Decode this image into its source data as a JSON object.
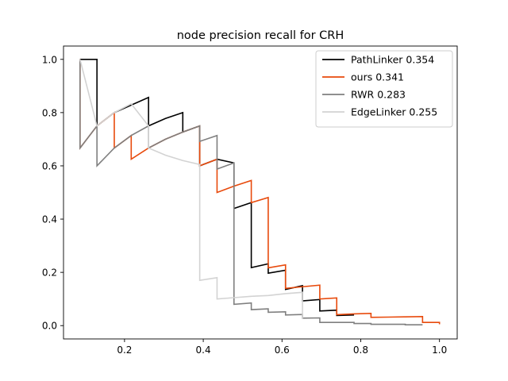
{
  "chart_data": {
    "type": "line",
    "title": "node precision recall for CRH",
    "xlabel": "",
    "ylabel": "",
    "xlim": [
      0.045,
      1.045
    ],
    "ylim": [
      -0.05,
      1.05
    ],
    "xticks": [
      0.2,
      0.4,
      0.6,
      0.8,
      1.0
    ],
    "xtick_labels": [
      "0.2",
      "0.4",
      "0.6",
      "0.8",
      "1.0"
    ],
    "yticks": [
      0.0,
      0.2,
      0.4,
      0.6,
      0.8,
      1.0
    ],
    "ytick_labels": [
      "0.0",
      "0.2",
      "0.4",
      "0.6",
      "0.8",
      "1.0"
    ],
    "grid": false,
    "legend_position": "top-right",
    "series": [
      {
        "name": "PathLinker 0.354",
        "color": "#000000",
        "points": [
          [
            0.087,
            1.0
          ],
          [
            0.13,
            1.0
          ],
          [
            0.13,
            0.75
          ],
          [
            0.174,
            0.8
          ],
          [
            0.261,
            0.857
          ],
          [
            0.261,
            0.75
          ],
          [
            0.304,
            0.778
          ],
          [
            0.348,
            0.8
          ],
          [
            0.348,
            0.727
          ],
          [
            0.391,
            0.75
          ],
          [
            0.391,
            0.6
          ],
          [
            0.435,
            0.625
          ],
          [
            0.478,
            0.611
          ],
          [
            0.478,
            0.44
          ],
          [
            0.522,
            0.462
          ],
          [
            0.522,
            0.218
          ],
          [
            0.565,
            0.232
          ],
          [
            0.565,
            0.197
          ],
          [
            0.609,
            0.208
          ],
          [
            0.609,
            0.136
          ],
          [
            0.652,
            0.15
          ],
          [
            0.652,
            0.093
          ],
          [
            0.696,
            0.098
          ],
          [
            0.696,
            0.055
          ],
          [
            0.739,
            0.058
          ],
          [
            0.739,
            0.038
          ],
          [
            0.783,
            0.04
          ]
        ]
      },
      {
        "name": "ours 0.341",
        "color": "#e84a0c",
        "points": [
          [
            0.087,
            1.0
          ],
          [
            0.087,
            0.667
          ],
          [
            0.13,
            0.75
          ],
          [
            0.174,
            0.8
          ],
          [
            0.174,
            0.667
          ],
          [
            0.217,
            0.714
          ],
          [
            0.217,
            0.625
          ],
          [
            0.261,
            0.667
          ],
          [
            0.304,
            0.7
          ],
          [
            0.348,
            0.727
          ],
          [
            0.391,
            0.75
          ],
          [
            0.391,
            0.6
          ],
          [
            0.435,
            0.625
          ],
          [
            0.435,
            0.5
          ],
          [
            0.478,
            0.524
          ],
          [
            0.522,
            0.545
          ],
          [
            0.522,
            0.462
          ],
          [
            0.565,
            0.481
          ],
          [
            0.565,
            0.217
          ],
          [
            0.609,
            0.228
          ],
          [
            0.609,
            0.14
          ],
          [
            0.652,
            0.146
          ],
          [
            0.696,
            0.152
          ],
          [
            0.696,
            0.1
          ],
          [
            0.739,
            0.104
          ],
          [
            0.739,
            0.041
          ],
          [
            0.783,
            0.044
          ],
          [
            0.826,
            0.046
          ],
          [
            0.826,
            0.031
          ],
          [
            0.87,
            0.032
          ],
          [
            0.913,
            0.033
          ],
          [
            0.957,
            0.034
          ],
          [
            0.957,
            0.012
          ],
          [
            1.0,
            0.012
          ],
          [
            1.0,
            0.005
          ]
        ]
      },
      {
        "name": "RWR 0.283",
        "color": "#7f7f7f",
        "points": [
          [
            0.087,
            1.0
          ],
          [
            0.087,
            0.667
          ],
          [
            0.13,
            0.75
          ],
          [
            0.13,
            0.6
          ],
          [
            0.174,
            0.667
          ],
          [
            0.217,
            0.714
          ],
          [
            0.261,
            0.75
          ],
          [
            0.261,
            0.667
          ],
          [
            0.304,
            0.7
          ],
          [
            0.348,
            0.727
          ],
          [
            0.391,
            0.75
          ],
          [
            0.391,
            0.692
          ],
          [
            0.435,
            0.714
          ],
          [
            0.435,
            0.588
          ],
          [
            0.478,
            0.611
          ],
          [
            0.478,
            0.08
          ],
          [
            0.522,
            0.085
          ],
          [
            0.522,
            0.06
          ],
          [
            0.565,
            0.063
          ],
          [
            0.565,
            0.05
          ],
          [
            0.609,
            0.052
          ],
          [
            0.609,
            0.04
          ],
          [
            0.652,
            0.042
          ],
          [
            0.652,
            0.028
          ],
          [
            0.696,
            0.029
          ],
          [
            0.696,
            0.012
          ],
          [
            0.783,
            0.012
          ],
          [
            0.783,
            0.008
          ],
          [
            0.826,
            0.008
          ],
          [
            0.826,
            0.005
          ],
          [
            0.913,
            0.005
          ],
          [
            0.913,
            0.003
          ],
          [
            0.957,
            0.003
          ]
        ]
      },
      {
        "name": "EdgeLinker 0.255",
        "color": "#d3d3d3",
        "points": [
          [
            0.087,
            1.0
          ],
          [
            0.13,
            0.75
          ],
          [
            0.174,
            0.8
          ],
          [
            0.217,
            0.833
          ],
          [
            0.261,
            0.75
          ],
          [
            0.261,
            0.667
          ],
          [
            0.304,
            0.64
          ],
          [
            0.348,
            0.62
          ],
          [
            0.391,
            0.605
          ],
          [
            0.391,
            0.17
          ],
          [
            0.435,
            0.18
          ],
          [
            0.435,
            0.1
          ],
          [
            0.478,
            0.105
          ],
          [
            0.522,
            0.11
          ],
          [
            0.565,
            0.113
          ],
          [
            0.609,
            0.12
          ],
          [
            0.652,
            0.125
          ],
          [
            0.652,
            0.025
          ]
        ]
      }
    ]
  }
}
